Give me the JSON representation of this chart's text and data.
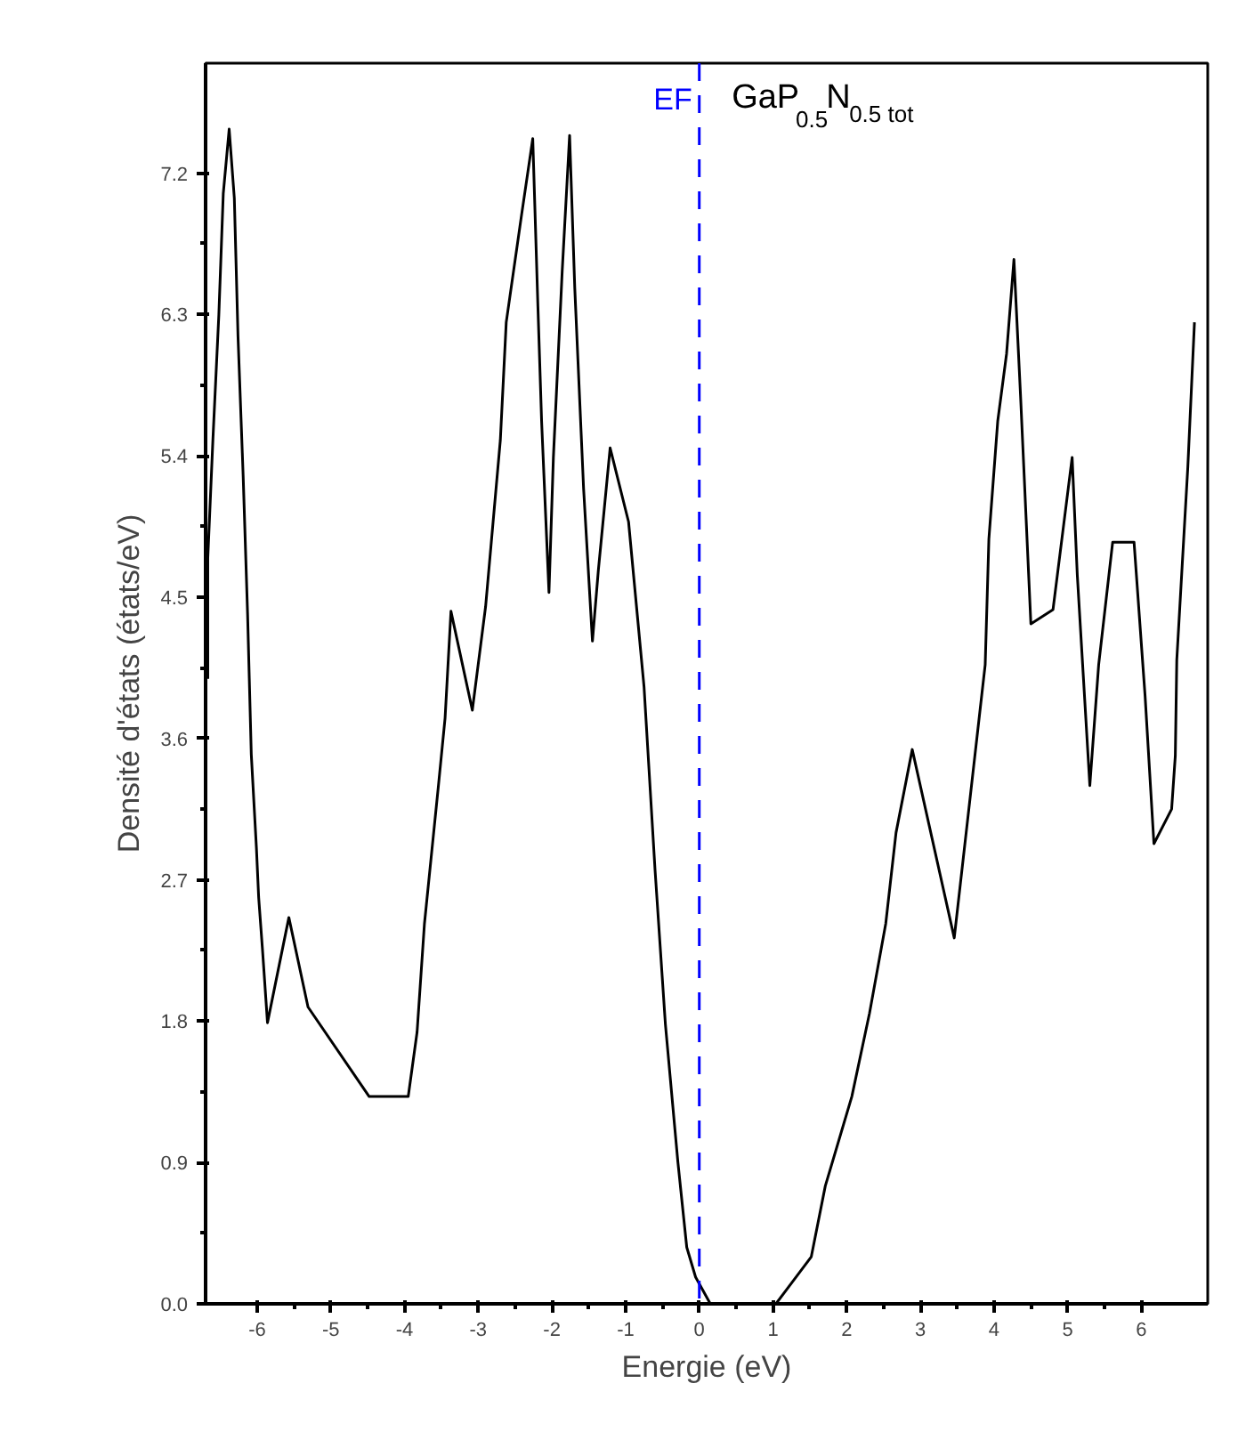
{
  "chart_data": {
    "type": "line",
    "xlabel": "Energie (eV)",
    "ylabel": "Densité d'états (états/eV)",
    "annotations": [
      "GaP$_{0.5}$N$_{0.5 tot}$"
    ],
    "x": [
      -6.67,
      -6.67,
      -6.6,
      -6.52,
      -6.46,
      -6.38,
      -6.31,
      -6.26,
      -6.19,
      -6.13,
      -6.08,
      -6.01,
      -5.98,
      -5.93,
      -5.86,
      -5.57,
      -5.31,
      -4.48,
      -3.95,
      -3.83,
      -3.73,
      -3.54,
      -3.45,
      -3.37,
      -3.08,
      -2.9,
      -2.7,
      -2.62,
      -2.41,
      -2.26,
      -2.19,
      -2.14,
      -2.04,
      -1.98,
      -1.86,
      -1.76,
      -1.69,
      -1.57,
      -1.45,
      -1.37,
      -1.21,
      -0.96,
      -0.75,
      -0.6,
      -0.46,
      -0.29,
      -0.17,
      -0.05,
      0.15,
      1.04,
      1.2,
      1.52,
      1.71,
      2.07,
      2.31,
      2.53,
      2.67,
      2.89,
      3.46,
      3.74,
      3.88,
      3.93,
      4.05,
      4.17,
      4.27,
      4.36,
      4.5,
      4.8,
      5.06,
      5.13,
      5.3,
      5.42,
      5.61,
      5.9,
      6.05,
      6.17,
      6.41,
      6.46,
      6.48,
      6.63,
      6.72
    ],
    "values": [
      3.98,
      4.75,
      5.51,
      6.3,
      7.07,
      7.48,
      7.04,
      6.16,
      5.27,
      4.39,
      3.5,
      2.9,
      2.59,
      2.27,
      1.79,
      2.46,
      1.89,
      1.32,
      1.32,
      1.73,
      2.42,
      3.3,
      3.73,
      4.41,
      3.78,
      4.44,
      5.5,
      6.25,
      6.94,
      7.42,
      6.35,
      5.62,
      4.53,
      5.39,
      6.58,
      7.44,
      6.47,
      5.19,
      4.22,
      4.67,
      5.45,
      4.98,
      3.93,
      2.76,
      1.78,
      0.9,
      0.36,
      0.17,
      0,
      0,
      0.1,
      0.3,
      0.75,
      1.32,
      1.85,
      2.42,
      3.0,
      3.53,
      2.33,
      3.49,
      4.07,
      4.87,
      5.62,
      6.05,
      6.65,
      5.78,
      4.33,
      4.42,
      5.39,
      4.64,
      3.3,
      4.07,
      4.85,
      4.85,
      3.87,
      2.93,
      3.15,
      3.49,
      4.1,
      5.33,
      6.25
    ],
    "color": "#000000",
    "xlim": [
      -6.7,
      6.9
    ],
    "ylim": [
      0,
      7.9
    ],
    "xticks": [
      -6,
      -5,
      -4,
      -3,
      -2,
      -1,
      0,
      1,
      2,
      3,
      4,
      5,
      6
    ],
    "yticks": [
      {
        "value": 0,
        "label": "0.0"
      },
      0.9,
      1.8,
      2.7,
      3.6,
      4.5,
      5.4,
      6.3,
      7.2
    ],
    "ref_lines": [
      {
        "axis": "x",
        "value": 0,
        "label": "EF",
        "color": "#0000ff",
        "line_style": "dashed"
      }
    ],
    "grid": false
  }
}
